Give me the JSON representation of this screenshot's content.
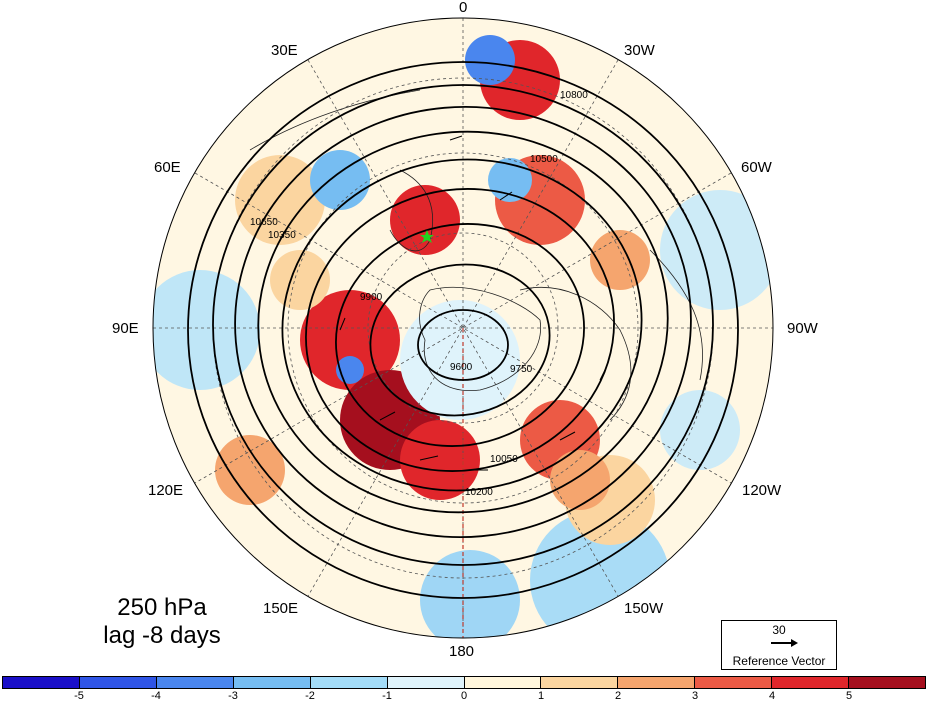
{
  "title": {
    "level": "250 hPa",
    "lag": "lag -8 days"
  },
  "longitude_labels": {
    "lon_0": "0",
    "lon_30w": "30W",
    "lon_60w": "60W",
    "lon_90w": "90W",
    "lon_120w": "120W",
    "lon_150w": "150W",
    "lon_180": "180",
    "lon_150e": "150E",
    "lon_120e": "120E",
    "lon_90e": "90E",
    "lon_60e": "60E",
    "lon_30e": "30E"
  },
  "contour_labels": [
    "10800",
    "10650",
    "10500",
    "10350",
    "10200",
    "10050",
    "9900",
    "9750",
    "9600"
  ],
  "reference_vector": {
    "value": "30",
    "caption": "Reference Vector"
  },
  "colorbar": {
    "colors": [
      "#1a0fc8",
      "#2f55e6",
      "#4a86ee",
      "#76bdf2",
      "#a3dcf8",
      "#dff3fb",
      "#fff6dc",
      "#fbd5a0",
      "#f5a56e",
      "#ec5a45",
      "#e0262b",
      "#a50f1e"
    ],
    "ticks": [
      "-5",
      "-4",
      "-3",
      "-2",
      "-1",
      "0",
      "1",
      "2",
      "3",
      "4",
      "5"
    ]
  },
  "marker": {
    "color": "#1fd41f",
    "name": "star"
  }
}
